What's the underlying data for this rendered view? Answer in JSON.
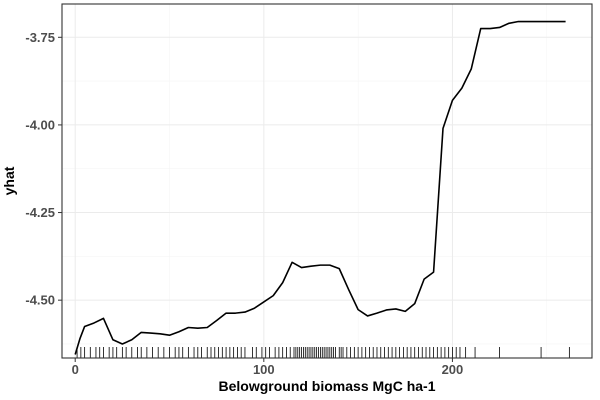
{
  "chart_data": {
    "type": "line",
    "title": "",
    "xlabel": "Belowground biomass MgC ha-1",
    "ylabel": "yhat",
    "xlim": [
      -7,
      274
    ],
    "ylim": [
      -4.665,
      -3.655
    ],
    "x_ticks": [
      0,
      100,
      200
    ],
    "x_tick_labels": [
      "0",
      "100",
      "200"
    ],
    "y_ticks": [
      -4.5,
      -4.25,
      -4.0,
      -3.75
    ],
    "y_tick_labels": [
      "-4.50",
      "-4.25",
      "-4.00",
      "-3.75"
    ],
    "grid": true,
    "legend": "none",
    "colors": {
      "line": "#000000",
      "grid_major": "#ebebeb",
      "grid_minor": "#f5f5f5",
      "panel_border": "#333333"
    },
    "series": [
      {
        "x": [
          0,
          2.5,
          5,
          10,
          15,
          20,
          25,
          30,
          35,
          40,
          45,
          50,
          55,
          60,
          65,
          70,
          75,
          80,
          85,
          90,
          95,
          100,
          105,
          110,
          115,
          120,
          125,
          130,
          135,
          140,
          145,
          150,
          155,
          160,
          165,
          170,
          175,
          180,
          185,
          190,
          195,
          200,
          205,
          210,
          215,
          220,
          225,
          230,
          235,
          240,
          245,
          250,
          255,
          260
        ],
        "values": [
          -4.655,
          -4.61,
          -4.575,
          -4.565,
          -4.552,
          -4.613,
          -4.625,
          -4.613,
          -4.592,
          -4.594,
          -4.596,
          -4.6,
          -4.59,
          -4.578,
          -4.58,
          -4.578,
          -4.558,
          -4.537,
          -4.537,
          -4.534,
          -4.523,
          -4.505,
          -4.487,
          -4.45,
          -4.392,
          -4.407,
          -4.403,
          -4.4,
          -4.4,
          -4.41,
          -4.47,
          -4.527,
          -4.545,
          -4.537,
          -4.528,
          -4.525,
          -4.532,
          -4.51,
          -4.44,
          -4.42,
          -4.01,
          -3.93,
          -3.895,
          -3.84,
          -3.725,
          -3.725,
          -3.722,
          -3.71,
          -3.705,
          -3.705,
          -3.705,
          -3.705,
          -3.705,
          -3.705
        ]
      }
    ],
    "rug_x": [
      1,
      3,
      5,
      8,
      11,
      13,
      15,
      18,
      20,
      22,
      25,
      27,
      30,
      33,
      35,
      38,
      41,
      44,
      47,
      50,
      53,
      55,
      57,
      60,
      63,
      65,
      67,
      70,
      72,
      74,
      76,
      78,
      80,
      82,
      84,
      86,
      88,
      90,
      94,
      96,
      99,
      101,
      103,
      106,
      108,
      110,
      112,
      114,
      116,
      117,
      118,
      119,
      120,
      121,
      122,
      123,
      124,
      125,
      126,
      127,
      128,
      129,
      130,
      131,
      132,
      133,
      134,
      135,
      136,
      137,
      138,
      140,
      141,
      142,
      144,
      146,
      148,
      150,
      152,
      154,
      156,
      158,
      160,
      162,
      164,
      166,
      168,
      170,
      172,
      174,
      176,
      178,
      180,
      182,
      184,
      186,
      188,
      190,
      192,
      194,
      196,
      198,
      200,
      202,
      204,
      207,
      212,
      225,
      247,
      262
    ]
  }
}
